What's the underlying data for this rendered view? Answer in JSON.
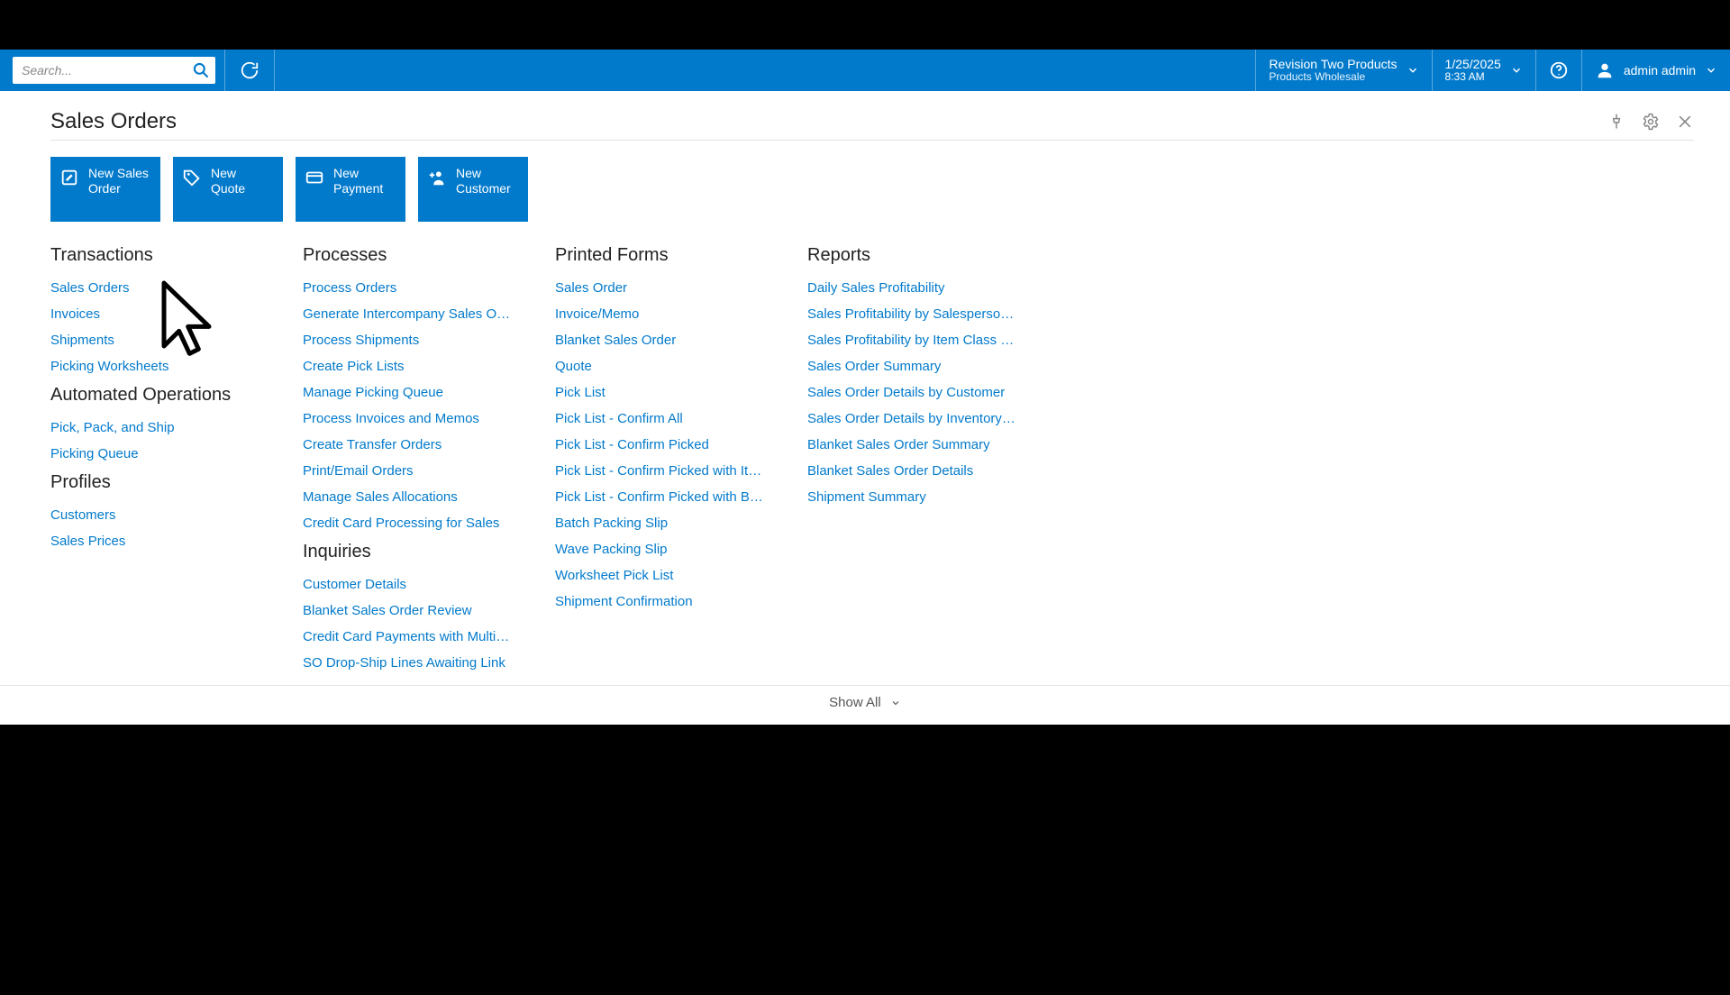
{
  "topbar": {
    "search_placeholder": "Search...",
    "tenant_line1": "Revision Two Products",
    "tenant_line2": "Products Wholesale",
    "date": "1/25/2025",
    "time": "8:33 AM",
    "user_name": "admin admin"
  },
  "page": {
    "title": "Sales Orders",
    "show_all": "Show All"
  },
  "tiles": [
    {
      "label": "New Sales\nOrder",
      "icon": "edit"
    },
    {
      "label": "New\nQuote",
      "icon": "tag"
    },
    {
      "label": "New\nPayment",
      "icon": "card"
    },
    {
      "label": "New\nCustomer",
      "icon": "user-plus"
    }
  ],
  "col1": {
    "groups": [
      {
        "title": "Transactions",
        "links": [
          "Sales Orders",
          "Invoices",
          "Shipments",
          "Picking Worksheets"
        ]
      },
      {
        "title": "Automated Operations",
        "links": [
          "Pick, Pack, and Ship",
          "Picking Queue"
        ]
      },
      {
        "title": "Profiles",
        "links": [
          "Customers",
          "Sales Prices"
        ]
      }
    ]
  },
  "col2": {
    "groups": [
      {
        "title": "Processes",
        "links": [
          "Process Orders",
          "Generate Intercompany Sales O…",
          "Process Shipments",
          "Create Pick Lists",
          "Manage Picking Queue",
          "Process Invoices and Memos",
          "Create Transfer Orders",
          "Print/Email Orders",
          "Manage Sales Allocations",
          "Credit Card Processing for Sales"
        ]
      },
      {
        "title": "Inquiries",
        "links": [
          "Customer Details",
          "Blanket Sales Order Review",
          "Credit Card Payments with Multi…",
          "SO Drop-Ship Lines Awaiting Link"
        ]
      }
    ]
  },
  "col3": {
    "groups": [
      {
        "title": "Printed Forms",
        "links": [
          "Sales Order",
          "Invoice/Memo",
          "Blanket Sales Order",
          "Quote",
          "Pick List",
          "Pick List - Confirm All",
          "Pick List - Confirm Picked",
          "Pick List - Confirm Picked with It…",
          "Pick List - Confirm Picked with B…",
          "Batch Packing Slip",
          "Wave Packing Slip",
          "Worksheet Pick List",
          "Shipment Confirmation"
        ]
      }
    ]
  },
  "col4": {
    "groups": [
      {
        "title": "Reports",
        "links": [
          "Daily Sales Profitability",
          "Sales Profitability by Salesperso…",
          "Sales Profitability by Item Class …",
          "Sales Order Summary",
          "Sales Order Details by Customer",
          "Sales Order Details by Inventory…",
          "Blanket Sales Order Summary",
          "Blanket Sales Order Details",
          "Shipment Summary"
        ]
      }
    ]
  },
  "colors": {
    "brand": "#027acc",
    "link": "#027acc",
    "text": "#222222",
    "divider": "#e2e2e2"
  }
}
